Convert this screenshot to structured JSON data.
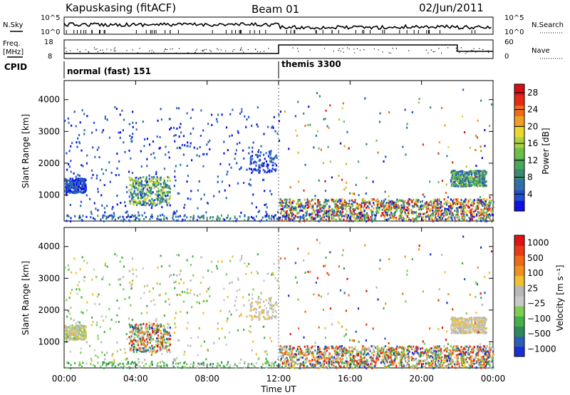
{
  "header": {
    "radar": "Kapuskasing (fitACF)",
    "beam": "Beam 01",
    "date": "02/Jun/2011"
  },
  "noise_panel": {
    "left_label": "N.Sky",
    "right_label": "N.Search",
    "left_ticks": [
      "10^5",
      "10^0"
    ],
    "right_ticks": [
      "10^5",
      "10^0"
    ]
  },
  "freq_panel": {
    "left_label_1": "Freq.",
    "left_label_2": "[MHz]",
    "right_label": "Nave",
    "left_ticks": [
      "18",
      "8"
    ],
    "right_ticks": [
      "60",
      "0"
    ]
  },
  "cpid": {
    "label": "CPID",
    "segments": [
      {
        "name": "normal (fast) 151",
        "start_hour": 0,
        "end_hour": 12
      },
      {
        "name": "themis 3300",
        "start_hour": 12,
        "end_hour": 24
      }
    ]
  },
  "chart_data": [
    {
      "type": "heatmap",
      "title": "",
      "ylabel": "Slant Range [km]",
      "xlabel": "",
      "x_ticks": [
        "00:00",
        "04:00",
        "08:00",
        "12:00",
        "16:00",
        "20:00",
        "00:00"
      ],
      "y_ticks": [
        1000,
        2000,
        3000,
        4000
      ],
      "xlim": [
        0,
        24
      ],
      "ylim": [
        180,
        4600
      ],
      "colorbar": {
        "label": "Power [dB]",
        "ticks": [
          4,
          8,
          12,
          16,
          20,
          24,
          28
        ],
        "range": [
          0,
          30
        ],
        "colors": [
          "#1010e6",
          "#2050d2",
          "#2f70a8",
          "#3a8a70",
          "#4aa85a",
          "#6cc04a",
          "#a8d040",
          "#e8d830",
          "#f0a020",
          "#f06a18",
          "#e62a14",
          "#d41010"
        ]
      }
    },
    {
      "type": "heatmap",
      "title": "",
      "ylabel": "Slant Range [km]",
      "xlabel": "Time UT",
      "x_ticks": [
        "00:00",
        "04:00",
        "08:00",
        "12:00",
        "16:00",
        "20:00",
        "00:00"
      ],
      "y_ticks": [
        1000,
        2000,
        3000,
        4000
      ],
      "xlim": [
        0,
        24
      ],
      "ylim": [
        180,
        4600
      ],
      "colorbar": {
        "label": "Velocity [m s⁻¹]",
        "ticks": [
          "1000",
          "500",
          "100",
          "25",
          "−25",
          "−100",
          "−500",
          "−1000"
        ],
        "colors": [
          "#1a2ed6",
          "#2a5fb5",
          "#2e8a5c",
          "#46b048",
          "#7ccf50",
          "#c8c8c8",
          "#b8b8b8",
          "#f0c030",
          "#f09020",
          "#f06818",
          "#e83a14",
          "#e01414"
        ]
      }
    }
  ]
}
